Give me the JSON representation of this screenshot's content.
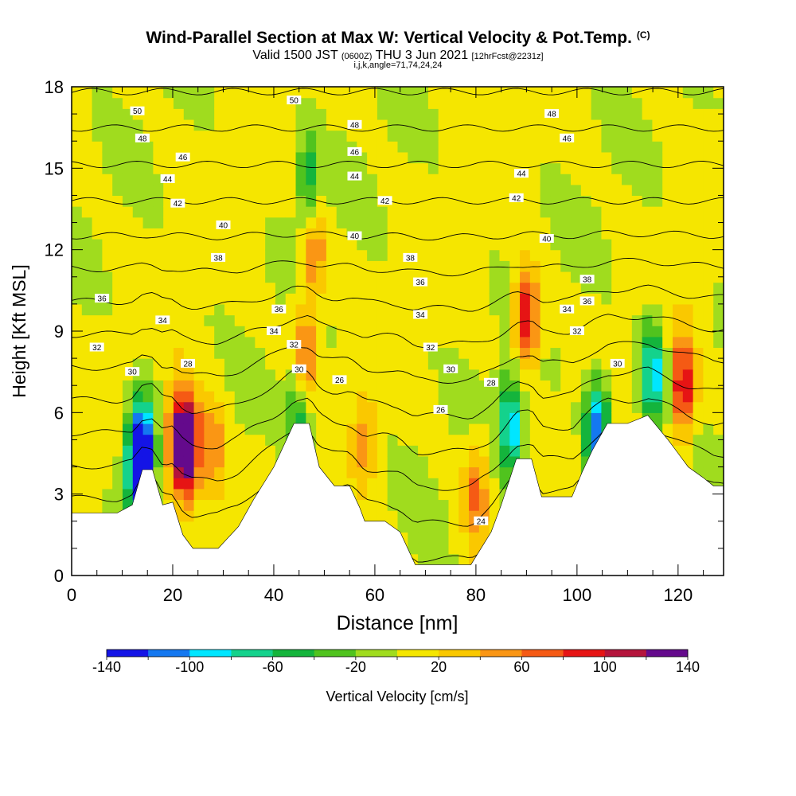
{
  "title": {
    "main": "Wind-Parallel Section at Max W: Vertical Velocity & Pot.Temp.",
    "copyright": "(C)",
    "valid_prefix": "Valid 1500 JST",
    "valid_utc": "(0600Z)",
    "valid_date": "THU 3 Jun 2021",
    "forecast": "[12hrFcst@2231z]",
    "params": "i,j,k,angle=71,74,24,24"
  },
  "chart_data": {
    "type": "heatmap",
    "xlabel": "Distance [nm]",
    "ylabel": "Height [Kft MSL]",
    "xlim": [
      0,
      129
    ],
    "ylim": [
      0,
      18
    ],
    "xticks": [
      0,
      20,
      40,
      60,
      80,
      100,
      120
    ],
    "yticks": [
      0,
      3,
      6,
      9,
      12,
      15,
      18
    ],
    "colorbar": {
      "label": "Vertical Velocity [cm/s]",
      "levels": [
        -140,
        -120,
        -100,
        -80,
        -60,
        -40,
        -20,
        0,
        20,
        40,
        60,
        80,
        100,
        120,
        140
      ],
      "tick_labels": [
        "-140",
        "-100",
        "-60",
        "-20",
        "20",
        "60",
        "100",
        "140"
      ],
      "colors": [
        "#1414e6",
        "#1478f0",
        "#00e6ff",
        "#14d28c",
        "#14b43c",
        "#50c31e",
        "#a0dc1e",
        "#f5e600",
        "#fac800",
        "#fa9614",
        "#f55a14",
        "#e61414",
        "#b4143c",
        "#640a8c"
      ]
    },
    "terrain_kft": [
      [
        0,
        2.3
      ],
      [
        9,
        2.3
      ],
      [
        12,
        2.6
      ],
      [
        14,
        3.9
      ],
      [
        16,
        3.9
      ],
      [
        18,
        2.6
      ],
      [
        20,
        2.7
      ],
      [
        22,
        1.5
      ],
      [
        24,
        1.0
      ],
      [
        29,
        1.0
      ],
      [
        33,
        1.8
      ],
      [
        36,
        2.8
      ],
      [
        40,
        4.0
      ],
      [
        44,
        5.6
      ],
      [
        47,
        5.6
      ],
      [
        49,
        4.0
      ],
      [
        52,
        3.3
      ],
      [
        55,
        3.3
      ],
      [
        57,
        2.5
      ],
      [
        58,
        2.0
      ],
      [
        62,
        2.0
      ],
      [
        65,
        1.6
      ],
      [
        68,
        0.4
      ],
      [
        79,
        0.4
      ],
      [
        83,
        1.6
      ],
      [
        85,
        2.6
      ],
      [
        88,
        4.3
      ],
      [
        91,
        4.3
      ],
      [
        93,
        2.9
      ],
      [
        99,
        2.9
      ],
      [
        101,
        3.8
      ],
      [
        103,
        4.6
      ],
      [
        106,
        5.6
      ],
      [
        110,
        5.6
      ],
      [
        114,
        5.9
      ],
      [
        118,
        5.0
      ],
      [
        120,
        4.5
      ],
      [
        122,
        4.0
      ],
      [
        125,
        3.6
      ],
      [
        127,
        3.3
      ],
      [
        129,
        3.3
      ]
    ],
    "velocity_features_cm_s": [
      {
        "x": 23,
        "y": 4.8,
        "value": 140
      },
      {
        "x": 21,
        "y": 5.0,
        "value": 80
      },
      {
        "x": 28,
        "y": 4.5,
        "value": 60
      },
      {
        "x": 14,
        "y": 4.5,
        "value": -140
      },
      {
        "x": 13,
        "y": 4.0,
        "value": -100
      },
      {
        "x": 46,
        "y": 8.0,
        "value": 80
      },
      {
        "x": 48,
        "y": 12.0,
        "value": 60
      },
      {
        "x": 45,
        "y": 6.0,
        "value": -80
      },
      {
        "x": 47,
        "y": 14.5,
        "value": -60
      },
      {
        "x": 90,
        "y": 9.5,
        "value": 100
      },
      {
        "x": 87,
        "y": 5.5,
        "value": -100
      },
      {
        "x": 104,
        "y": 5.3,
        "value": -120
      },
      {
        "x": 115,
        "y": 7.5,
        "value": -100
      },
      {
        "x": 121,
        "y": 7.0,
        "value": 100
      },
      {
        "x": 80,
        "y": 3.0,
        "value": 60
      },
      {
        "x": 58,
        "y": 5.0,
        "value": 40
      }
    ],
    "theta_contour_labels": [
      {
        "value": "50",
        "x": 13,
        "y": 17.1
      },
      {
        "value": "48",
        "x": 14,
        "y": 16.1
      },
      {
        "value": "46",
        "x": 22,
        "y": 15.4
      },
      {
        "value": "44",
        "x": 19,
        "y": 14.6
      },
      {
        "value": "42",
        "x": 21,
        "y": 13.7
      },
      {
        "value": "40",
        "x": 30,
        "y": 12.9
      },
      {
        "value": "38",
        "x": 29,
        "y": 11.7
      },
      {
        "value": "36",
        "x": 6,
        "y": 10.2
      },
      {
        "value": "34",
        "x": 18,
        "y": 9.4
      },
      {
        "value": "32",
        "x": 5,
        "y": 8.4
      },
      {
        "value": "30",
        "x": 12,
        "y": 7.5
      },
      {
        "value": "28",
        "x": 23,
        "y": 7.8
      },
      {
        "value": "50",
        "x": 44,
        "y": 17.5
      },
      {
        "value": "48",
        "x": 56,
        "y": 16.6
      },
      {
        "value": "46",
        "x": 56,
        "y": 15.6
      },
      {
        "value": "44",
        "x": 56,
        "y": 14.7
      },
      {
        "value": "42",
        "x": 62,
        "y": 13.8
      },
      {
        "value": "40",
        "x": 56,
        "y": 12.5
      },
      {
        "value": "38",
        "x": 67,
        "y": 11.7
      },
      {
        "value": "36",
        "x": 69,
        "y": 10.8
      },
      {
        "value": "34",
        "x": 69,
        "y": 9.6
      },
      {
        "value": "32",
        "x": 71,
        "y": 8.4
      },
      {
        "value": "30",
        "x": 75,
        "y": 7.6
      },
      {
        "value": "28",
        "x": 83,
        "y": 7.1
      },
      {
        "value": "26",
        "x": 73,
        "y": 6.1
      },
      {
        "value": "36",
        "x": 41,
        "y": 9.8
      },
      {
        "value": "34",
        "x": 40,
        "y": 9.0
      },
      {
        "value": "32",
        "x": 44,
        "y": 8.5
      },
      {
        "value": "30",
        "x": 45,
        "y": 7.6
      },
      {
        "value": "26",
        "x": 53,
        "y": 7.2
      },
      {
        "value": "24",
        "x": 81,
        "y": 2.0
      },
      {
        "value": "48",
        "x": 95,
        "y": 17.0
      },
      {
        "value": "46",
        "x": 98,
        "y": 16.1
      },
      {
        "value": "44",
        "x": 89,
        "y": 14.8
      },
      {
        "value": "42",
        "x": 88,
        "y": 13.9
      },
      {
        "value": "40",
        "x": 94,
        "y": 12.4
      },
      {
        "value": "38",
        "x": 102,
        "y": 10.9
      },
      {
        "value": "36",
        "x": 102,
        "y": 10.1
      },
      {
        "value": "34",
        "x": 98,
        "y": 9.8
      },
      {
        "value": "32",
        "x": 100,
        "y": 9.0
      },
      {
        "value": "30",
        "x": 108,
        "y": 7.8
      }
    ]
  },
  "colors": {
    "terrain": "#ffffff",
    "contour": "#000000",
    "background": "#ffffff"
  }
}
